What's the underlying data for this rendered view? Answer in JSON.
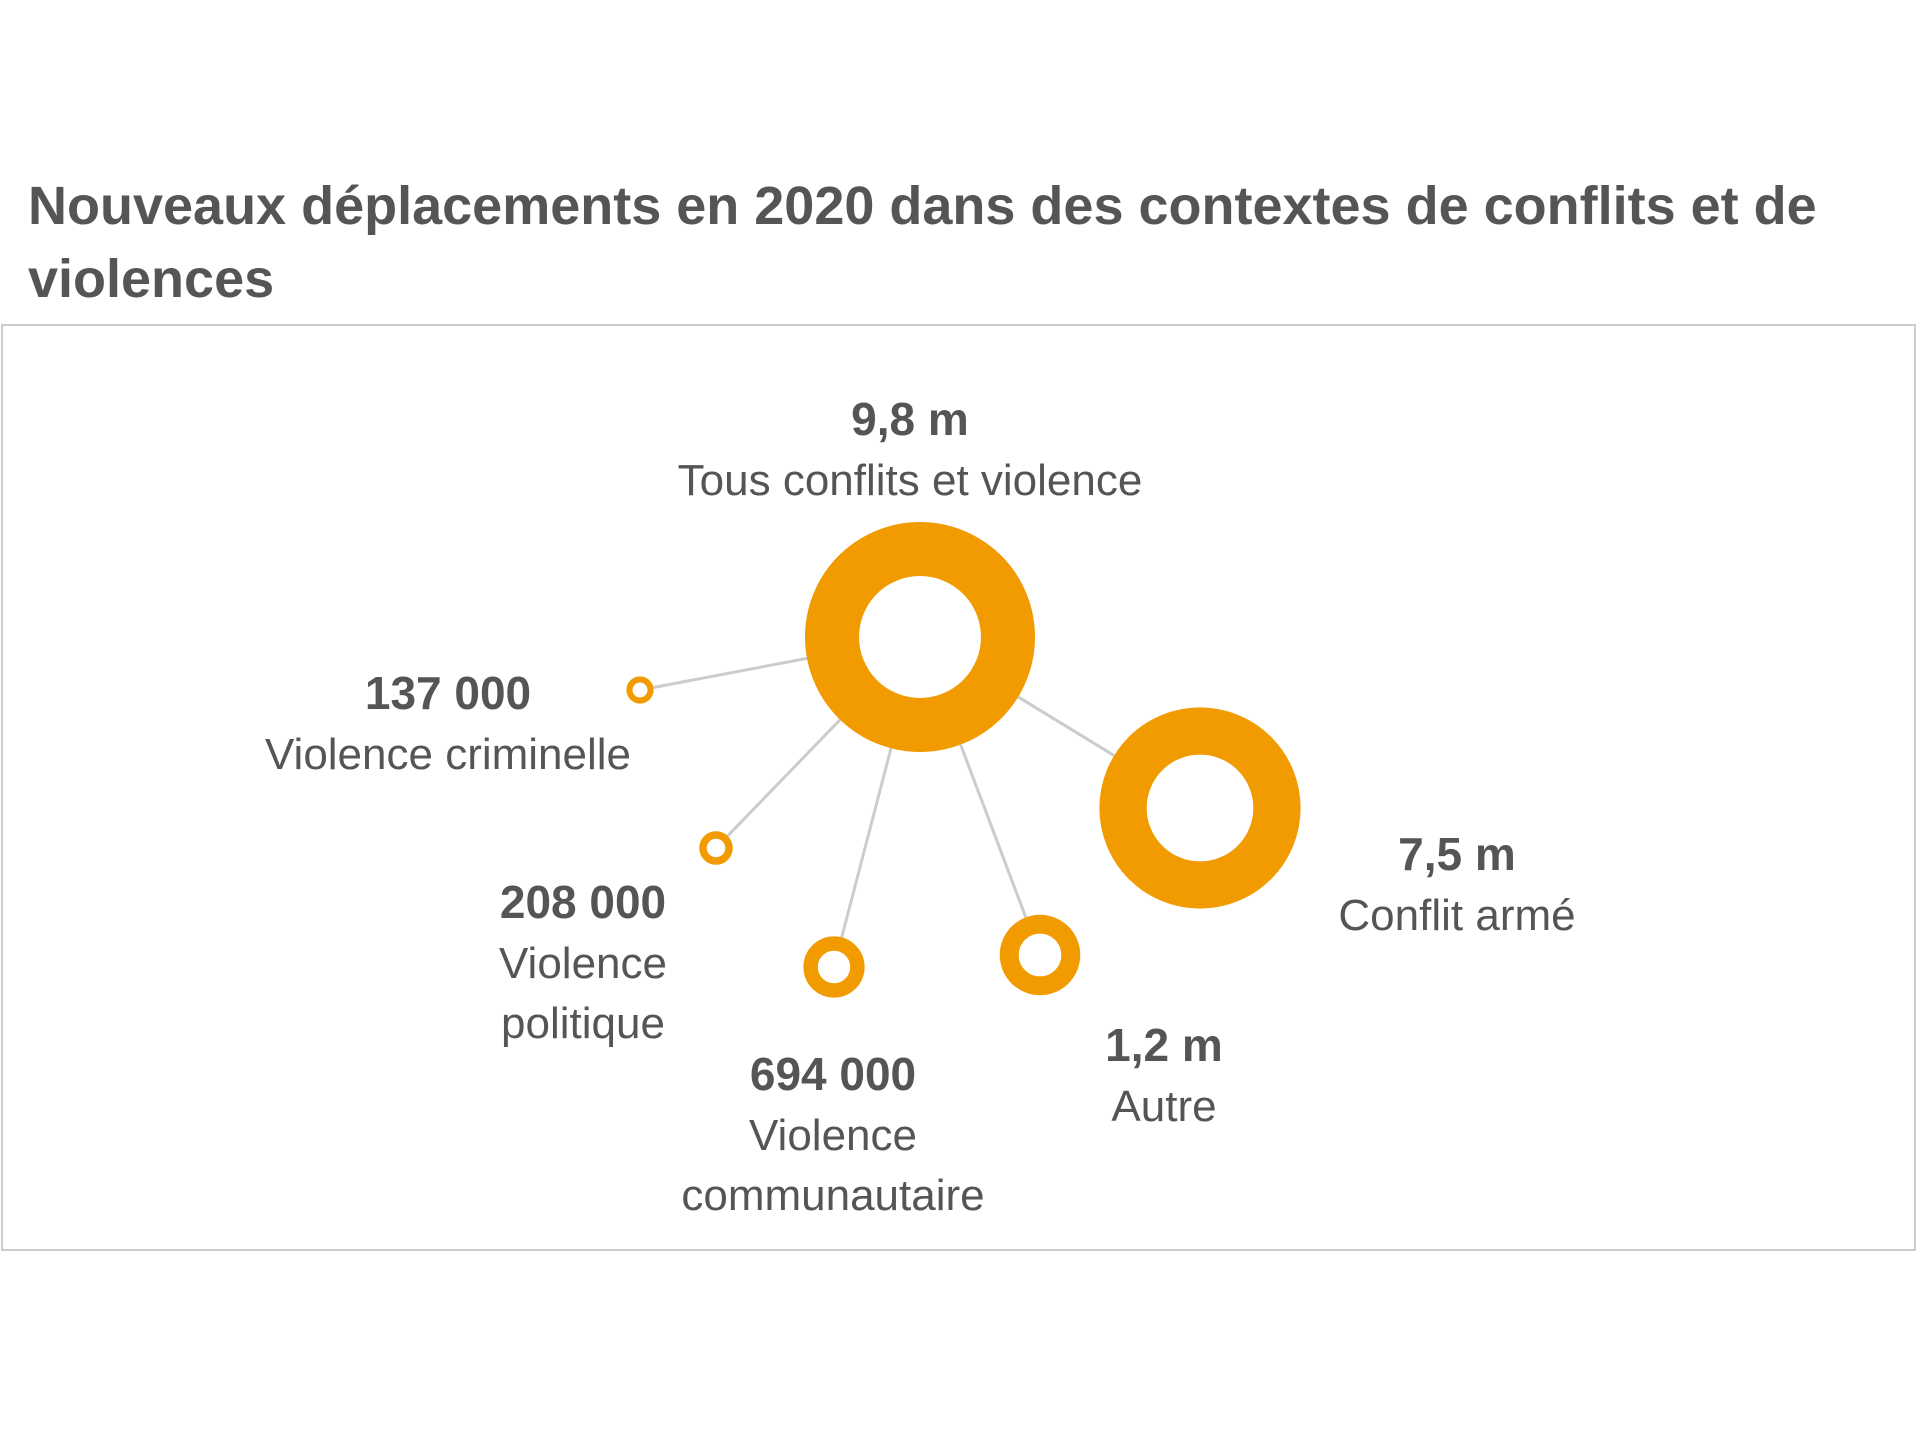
{
  "title": "Nouveaux déplacements en 2020 dans des contextes de conflits et de violences",
  "colors": {
    "accent": "#F29B00",
    "text": "#555555",
    "connector": "#cccccc",
    "frame": "#cccccc"
  },
  "chart_data": {
    "type": "bubble",
    "unit": "nouveaux déplacements",
    "total": {
      "value_text": "9,8 m",
      "label_lines": [
        "Tous conflits et violence"
      ],
      "value": 9800000
    },
    "categories": [
      {
        "value_text": "137 000",
        "label_lines": [
          "Violence criminelle"
        ],
        "value": 137000
      },
      {
        "value_text": "208 000",
        "label_lines": [
          "Violence",
          "politique"
        ],
        "value": 208000
      },
      {
        "value_text": "694 000",
        "label_lines": [
          "Violence",
          "communautaire"
        ],
        "value": 694000
      },
      {
        "value_text": "1,2 m",
        "label_lines": [
          "Autre"
        ],
        "value": 1200000
      },
      {
        "value_text": "7,5 m",
        "label_lines": [
          "Conflit armé"
        ],
        "value": 7500000
      }
    ]
  }
}
